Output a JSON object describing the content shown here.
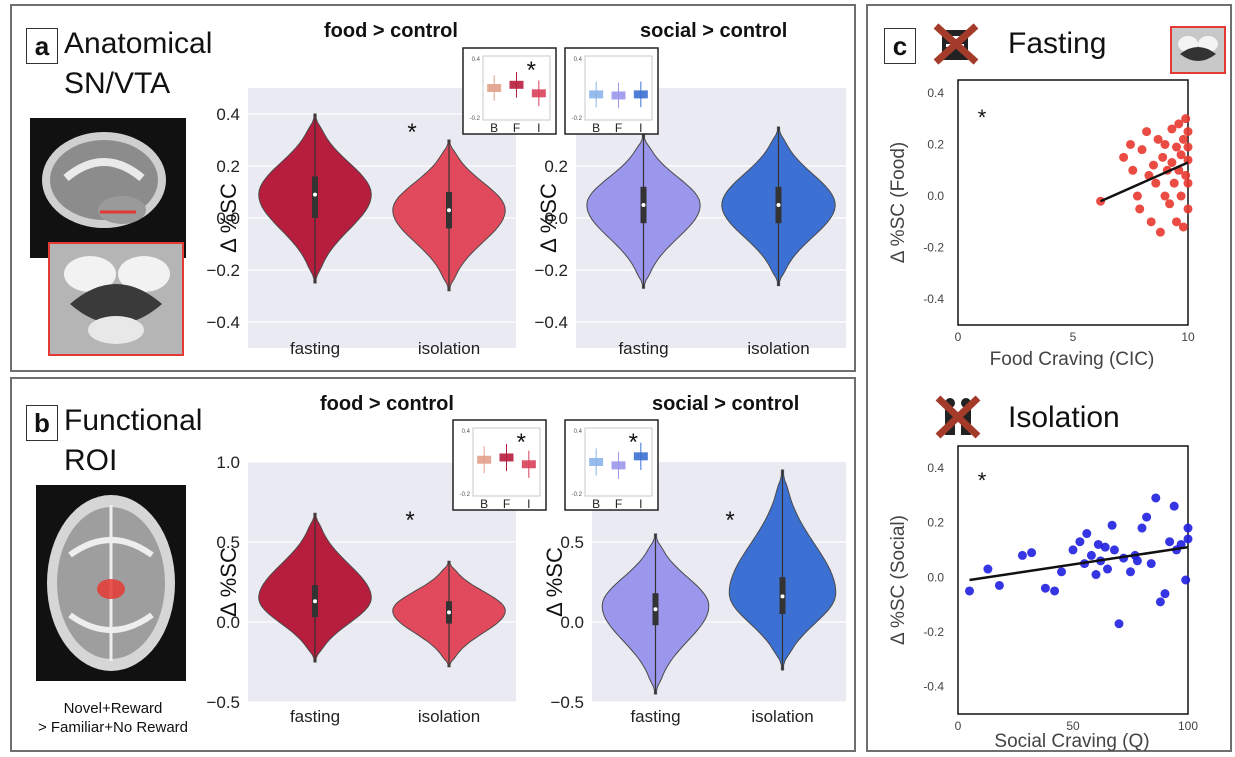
{
  "panel_a": {
    "letter": "a",
    "heading_line1": "Anatomical",
    "heading_line2": "SN/VTA"
  },
  "panel_b": {
    "letter": "b",
    "heading_line1": "Functional",
    "heading_line2": "ROI",
    "caption_line1": "Novel+Reward",
    "caption_line2": "> Familiar+No Reward"
  },
  "panel_c": {
    "letter": "c",
    "heading_top": "Fasting",
    "heading_bottom": "Isolation"
  },
  "colors": {
    "fasting_red": "#b71d3c",
    "isolation_red": "#e04a5c",
    "fasting_blue": "#9b97ec",
    "isolation_blue": "#3c70d2",
    "scatter_red": "#e8392f",
    "scatter_blue": "#1f1fe0",
    "plot_bg": "#eaeaf2"
  },
  "chart_data": [
    {
      "id": "a_food",
      "type": "violin",
      "title": "food > control",
      "ylabel": "Δ %SC",
      "categories": [
        "fasting",
        "isolation"
      ],
      "ylim": [
        -0.5,
        0.5
      ],
      "yticks": [
        "0.4",
        "0.2",
        "0.0",
        "−0.2",
        "−0.4"
      ],
      "ytick_values": [
        0.4,
        0.2,
        0.0,
        -0.2,
        -0.4
      ],
      "violins": [
        {
          "category": "fasting",
          "min": -0.25,
          "max": 0.4,
          "median": 0.09,
          "q1": 0.0,
          "q3": 0.16,
          "mode": 0.09
        },
        {
          "category": "isolation",
          "min": -0.28,
          "max": 0.3,
          "median": 0.03,
          "q1": -0.04,
          "q3": 0.1,
          "mode": 0.03
        }
      ],
      "annotation": "*",
      "inset": {
        "categories": [
          "B",
          "F",
          "I"
        ],
        "ticks": [
          "0.4",
          "-0.2"
        ],
        "means": [
          0.1,
          0.13,
          0.05
        ],
        "annotation": "*"
      }
    },
    {
      "id": "a_social",
      "type": "violin",
      "title": "social > control",
      "ylabel": "Δ %SC",
      "categories": [
        "fasting",
        "isolation"
      ],
      "ylim": [
        -0.5,
        0.5
      ],
      "yticks": [
        "0.2",
        "0.0",
        "−0.2",
        "−0.4"
      ],
      "ytick_values": [
        0.2,
        0.0,
        -0.2,
        -0.4
      ],
      "violins": [
        {
          "category": "fasting",
          "min": -0.27,
          "max": 0.32,
          "median": 0.05,
          "q1": -0.02,
          "q3": 0.12,
          "mode": 0.05
        },
        {
          "category": "isolation",
          "min": -0.26,
          "max": 0.35,
          "median": 0.05,
          "q1": -0.02,
          "q3": 0.12,
          "mode": 0.05
        }
      ],
      "inset": {
        "categories": [
          "B",
          "F",
          "I"
        ],
        "ticks": [
          "0.4",
          "-0.2"
        ],
        "means": [
          0.04,
          0.03,
          0.04
        ]
      }
    },
    {
      "id": "b_food",
      "type": "violin",
      "title": "food > control",
      "ylabel": "Δ %SC",
      "categories": [
        "fasting",
        "isolation"
      ],
      "ylim": [
        -0.5,
        1.0
      ],
      "yticks": [
        "1.0",
        "0.5",
        "0.0",
        "−0.5"
      ],
      "ytick_values": [
        1.0,
        0.5,
        0.0,
        -0.5
      ],
      "violins": [
        {
          "category": "fasting",
          "min": -0.25,
          "max": 0.68,
          "median": 0.13,
          "q1": 0.03,
          "q3": 0.23,
          "mode": 0.15
        },
        {
          "category": "isolation",
          "min": -0.28,
          "max": 0.38,
          "median": 0.06,
          "q1": -0.01,
          "q3": 0.13,
          "mode": 0.07
        }
      ],
      "annotation": "*",
      "inset": {
        "categories": [
          "B",
          "F",
          "I"
        ],
        "ticks": [
          "0.4",
          "-0.2"
        ],
        "means": [
          0.12,
          0.14,
          0.08
        ],
        "annotation": "*"
      }
    },
    {
      "id": "b_social",
      "type": "violin",
      "title": "social > control",
      "ylabel": "Δ %SC",
      "categories": [
        "fasting",
        "isolation"
      ],
      "ylim": [
        -0.5,
        1.0
      ],
      "yticks": [
        "0.5",
        "0.0",
        "−0.5"
      ],
      "ytick_values": [
        0.5,
        0.0,
        -0.5
      ],
      "violins": [
        {
          "category": "fasting",
          "min": -0.45,
          "max": 0.55,
          "median": 0.08,
          "q1": -0.02,
          "q3": 0.18,
          "mode": 0.1
        },
        {
          "category": "isolation",
          "min": -0.3,
          "max": 0.95,
          "median": 0.16,
          "q1": 0.05,
          "q3": 0.28,
          "mode": 0.18
        }
      ],
      "annotation": "*",
      "inset": {
        "categories": [
          "B",
          "F",
          "I"
        ],
        "ticks": [
          "0.4",
          "-0.2"
        ],
        "means": [
          0.1,
          0.07,
          0.15
        ],
        "annotation": "*"
      }
    },
    {
      "id": "c_fasting",
      "type": "scatter",
      "xlabel": "Food Craving (CIC)",
      "ylabel": "Δ %SC (Food)",
      "xlim": [
        0,
        10
      ],
      "ylim": [
        -0.5,
        0.45
      ],
      "xticks": [
        "0",
        "5",
        "10"
      ],
      "xtick_values": [
        0,
        5,
        10
      ],
      "yticks": [
        "0.4",
        "0.2",
        "0.0",
        "-0.2",
        "-0.4"
      ],
      "ytick_values": [
        0.4,
        0.2,
        0.0,
        -0.2,
        -0.4
      ],
      "annotation": "*",
      "fit": [
        [
          6.2,
          -0.02
        ],
        [
          10,
          0.13
        ]
      ],
      "points": [
        [
          6.2,
          -0.02
        ],
        [
          7.2,
          0.15
        ],
        [
          7.5,
          0.2
        ],
        [
          7.6,
          0.1
        ],
        [
          7.8,
          0.0
        ],
        [
          7.9,
          -0.05
        ],
        [
          8.0,
          0.18
        ],
        [
          8.2,
          0.25
        ],
        [
          8.3,
          0.08
        ],
        [
          8.4,
          -0.1
        ],
        [
          8.5,
          0.12
        ],
        [
          8.6,
          0.05
        ],
        [
          8.7,
          0.22
        ],
        [
          8.8,
          -0.14
        ],
        [
          8.9,
          0.15
        ],
        [
          9.0,
          0.2
        ],
        [
          9.0,
          0.0
        ],
        [
          9.1,
          0.1
        ],
        [
          9.2,
          -0.03
        ],
        [
          9.3,
          0.26
        ],
        [
          9.3,
          0.13
        ],
        [
          9.4,
          0.05
        ],
        [
          9.5,
          0.19
        ],
        [
          9.5,
          -0.1
        ],
        [
          9.6,
          0.28
        ],
        [
          9.6,
          0.1
        ],
        [
          9.7,
          0.0
        ],
        [
          9.7,
          0.16
        ],
        [
          9.8,
          0.22
        ],
        [
          9.8,
          -0.12
        ],
        [
          9.9,
          0.08
        ],
        [
          9.9,
          0.3
        ],
        [
          10.0,
          0.25
        ],
        [
          10.0,
          0.14
        ],
        [
          10.0,
          0.05
        ],
        [
          10.0,
          -0.05
        ],
        [
          10.0,
          0.19
        ]
      ]
    },
    {
      "id": "c_isolation",
      "type": "scatter",
      "xlabel": "Social Craving (Q)",
      "ylabel": "Δ %SC (Social)",
      "xlim": [
        0,
        100
      ],
      "ylim": [
        -0.5,
        0.48
      ],
      "xticks": [
        "0",
        "50",
        "100"
      ],
      "xtick_values": [
        0,
        50,
        100
      ],
      "yticks": [
        "0.4",
        "0.2",
        "0.0",
        "-0.2",
        "-0.4"
      ],
      "ytick_values": [
        0.4,
        0.2,
        0.0,
        -0.2,
        -0.4
      ],
      "annotation": "*",
      "fit": [
        [
          5,
          -0.01
        ],
        [
          100,
          0.11
        ]
      ],
      "points": [
        [
          5,
          -0.05
        ],
        [
          13,
          0.03
        ],
        [
          18,
          -0.03
        ],
        [
          28,
          0.08
        ],
        [
          32,
          0.09
        ],
        [
          38,
          -0.04
        ],
        [
          42,
          -0.05
        ],
        [
          45,
          0.02
        ],
        [
          50,
          0.1
        ],
        [
          53,
          0.13
        ],
        [
          55,
          0.05
        ],
        [
          56,
          0.16
        ],
        [
          58,
          0.08
        ],
        [
          60,
          0.01
        ],
        [
          61,
          0.12
        ],
        [
          62,
          0.06
        ],
        [
          64,
          0.11
        ],
        [
          65,
          0.03
        ],
        [
          67,
          0.19
        ],
        [
          68,
          0.1
        ],
        [
          70,
          -0.17
        ],
        [
          72,
          0.07
        ],
        [
          75,
          0.02
        ],
        [
          77,
          0.08
        ],
        [
          78,
          0.06
        ],
        [
          80,
          0.18
        ],
        [
          82,
          0.22
        ],
        [
          84,
          0.05
        ],
        [
          86,
          0.29
        ],
        [
          88,
          -0.09
        ],
        [
          90,
          -0.06
        ],
        [
          92,
          0.13
        ],
        [
          94,
          0.26
        ],
        [
          95,
          0.1
        ],
        [
          97,
          0.12
        ],
        [
          99,
          -0.01
        ],
        [
          100,
          0.18
        ],
        [
          100,
          0.14
        ]
      ]
    }
  ]
}
